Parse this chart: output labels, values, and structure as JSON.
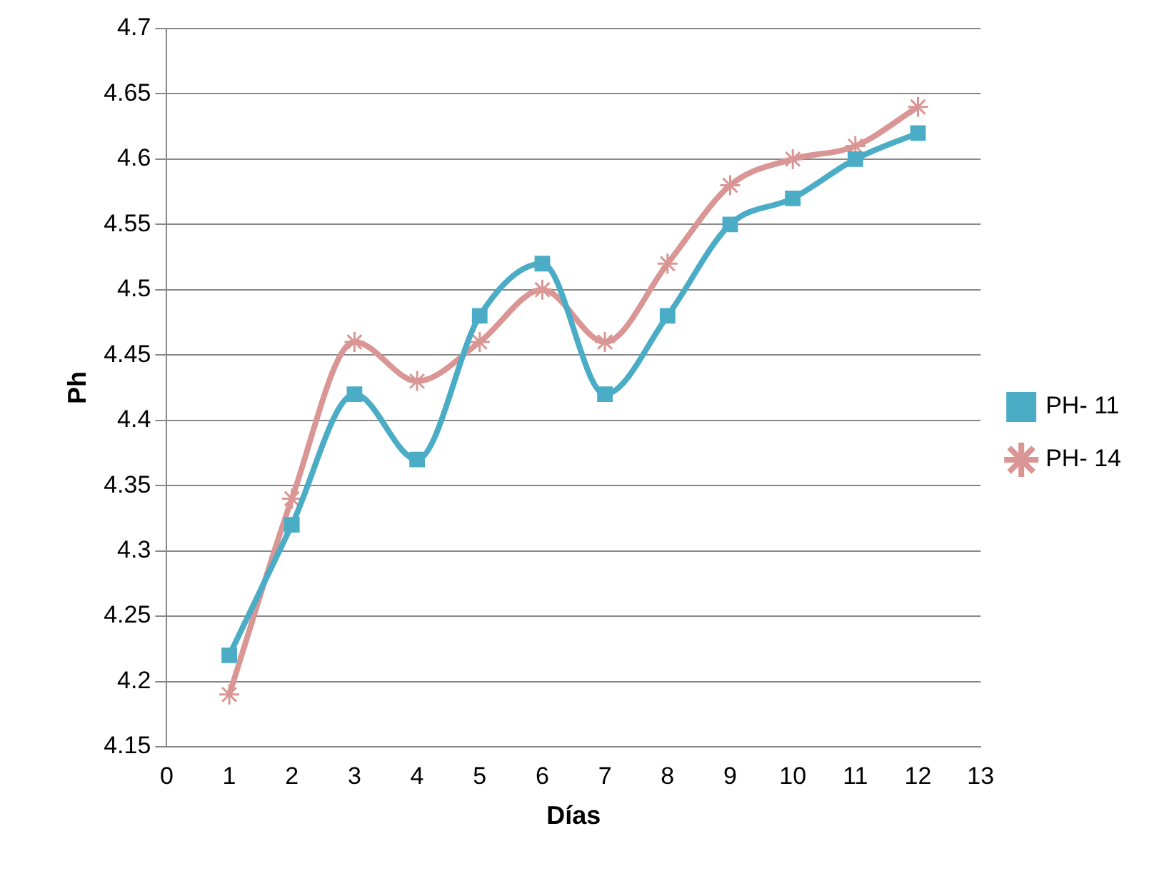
{
  "chart_data": {
    "type": "line",
    "xlabel": "Días",
    "ylabel": "Ph",
    "x": [
      1,
      2,
      3,
      4,
      5,
      6,
      7,
      8,
      9,
      10,
      11,
      12
    ],
    "xlim": [
      0,
      13
    ],
    "xticks": [
      0,
      1,
      2,
      3,
      4,
      5,
      6,
      7,
      8,
      9,
      10,
      11,
      12,
      13
    ],
    "ylim": [
      4.15,
      4.7
    ],
    "yticks": [
      4.15,
      4.2,
      4.25,
      4.3,
      4.35,
      4.4,
      4.45,
      4.5,
      4.55,
      4.6,
      4.65,
      4.7
    ],
    "grid": "y",
    "legend": "right",
    "series": [
      {
        "name": "PH- 11",
        "color": "#4bacc6",
        "marker": "square",
        "values": [
          4.22,
          4.32,
          4.42,
          4.37,
          4.48,
          4.52,
          4.42,
          4.48,
          4.55,
          4.57,
          4.6,
          4.62
        ]
      },
      {
        "name": "PH- 14",
        "color": "#d99694",
        "marker": "cross",
        "values": [
          4.19,
          4.34,
          4.46,
          4.43,
          4.46,
          4.5,
          4.46,
          4.52,
          4.58,
          4.6,
          4.61,
          4.64
        ]
      }
    ]
  }
}
